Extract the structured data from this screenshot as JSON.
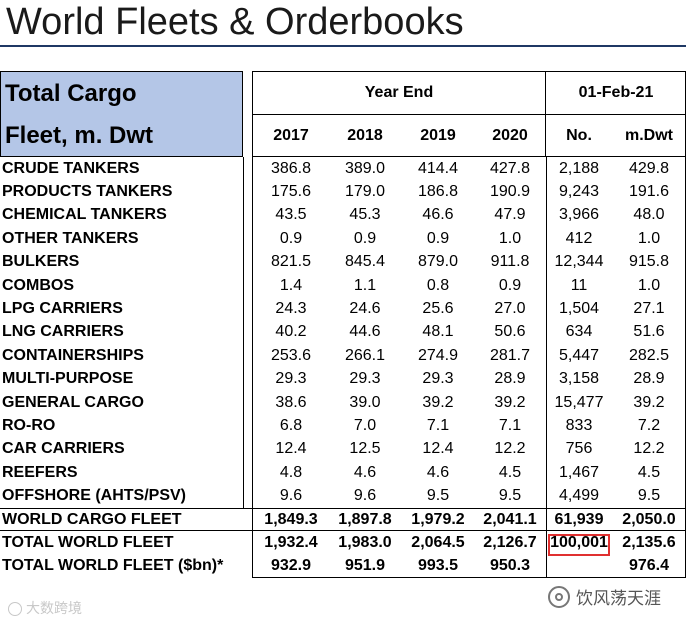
{
  "title": "World Fleets & Orderbooks",
  "header": {
    "label_line1": "Total Cargo",
    "label_line2": "Fleet, m. Dwt",
    "year_end_label": "Year End",
    "date_label": "01-Feb-21",
    "years": [
      "2017",
      "2018",
      "2019",
      "2020"
    ],
    "no_label": "No.",
    "mdwt_label": "m.Dwt"
  },
  "rows": [
    {
      "label": "CRUDE TANKERS",
      "v2017": "386.8",
      "v2018": "389.0",
      "v2019": "414.4",
      "v2020": "427.8",
      "no": "2,188",
      "mdwt": "429.8"
    },
    {
      "label": "PRODUCTS TANKERS",
      "v2017": "175.6",
      "v2018": "179.0",
      "v2019": "186.8",
      "v2020": "190.9",
      "no": "9,243",
      "mdwt": "191.6"
    },
    {
      "label": "CHEMICAL TANKERS",
      "v2017": "43.5",
      "v2018": "45.3",
      "v2019": "46.6",
      "v2020": "47.9",
      "no": "3,966",
      "mdwt": "48.0"
    },
    {
      "label": "OTHER TANKERS",
      "v2017": "0.9",
      "v2018": "0.9",
      "v2019": "0.9",
      "v2020": "1.0",
      "no": "412",
      "mdwt": "1.0"
    },
    {
      "label": "BULKERS",
      "v2017": "821.5",
      "v2018": "845.4",
      "v2019": "879.0",
      "v2020": "911.8",
      "no": "12,344",
      "mdwt": "915.8"
    },
    {
      "label": "COMBOS",
      "v2017": "1.4",
      "v2018": "1.1",
      "v2019": "0.8",
      "v2020": "0.9",
      "no": "11",
      "mdwt": "1.0"
    },
    {
      "label": "LPG CARRIERS",
      "v2017": "24.3",
      "v2018": "24.6",
      "v2019": "25.6",
      "v2020": "27.0",
      "no": "1,504",
      "mdwt": "27.1"
    },
    {
      "label": "LNG CARRIERS",
      "v2017": "40.2",
      "v2018": "44.6",
      "v2019": "48.1",
      "v2020": "50.6",
      "no": "634",
      "mdwt": "51.6"
    },
    {
      "label": "CONTAINERSHIPS",
      "v2017": "253.6",
      "v2018": "266.1",
      "v2019": "274.9",
      "v2020": "281.7",
      "no": "5,447",
      "mdwt": "282.5"
    },
    {
      "label": "MULTI-PURPOSE",
      "v2017": "29.3",
      "v2018": "29.3",
      "v2019": "29.3",
      "v2020": "28.9",
      "no": "3,158",
      "mdwt": "28.9"
    },
    {
      "label": "GENERAL CARGO",
      "v2017": "38.6",
      "v2018": "39.0",
      "v2019": "39.2",
      "v2020": "39.2",
      "no": "15,477",
      "mdwt": "39.2"
    },
    {
      "label": "RO-RO",
      "v2017": "6.8",
      "v2018": "7.0",
      "v2019": "7.1",
      "v2020": "7.1",
      "no": "833",
      "mdwt": "7.2"
    },
    {
      "label": "CAR CARRIERS",
      "v2017": "12.4",
      "v2018": "12.5",
      "v2019": "12.4",
      "v2020": "12.2",
      "no": "756",
      "mdwt": "12.2"
    },
    {
      "label": "REEFERS",
      "v2017": "4.8",
      "v2018": "4.6",
      "v2019": "4.6",
      "v2020": "4.5",
      "no": "1,467",
      "mdwt": "4.5"
    },
    {
      "label": "OFFSHORE (AHTS/PSV)",
      "v2017": "9.6",
      "v2018": "9.6",
      "v2019": "9.5",
      "v2020": "9.5",
      "no": "4,499",
      "mdwt": "9.5"
    }
  ],
  "totals": [
    {
      "label": "WORLD CARGO FLEET",
      "v2017": "1,849.3",
      "v2018": "1,897.8",
      "v2019": "1,979.2",
      "v2020": "2,041.1",
      "no": "61,939",
      "mdwt": "2,050.0"
    },
    {
      "label": "TOTAL WORLD FLEET",
      "v2017": "1,932.4",
      "v2018": "1,983.0",
      "v2019": "2,064.5",
      "v2020": "2,126.7",
      "no": "100,001",
      "mdwt": "2,135.6"
    },
    {
      "label": "TOTAL WORLD FLEET ($bn)*",
      "v2017": "932.9",
      "v2018": "951.9",
      "v2019": "993.5",
      "v2020": "950.3",
      "no": "",
      "mdwt": "976.4"
    }
  ],
  "watermark_left": "大数跨境",
  "watermark_right": "饮风荡天涯",
  "colors": {
    "header_fill": "#b4c6e7",
    "title_rule": "#1f3864",
    "highlight": "#e03030"
  }
}
